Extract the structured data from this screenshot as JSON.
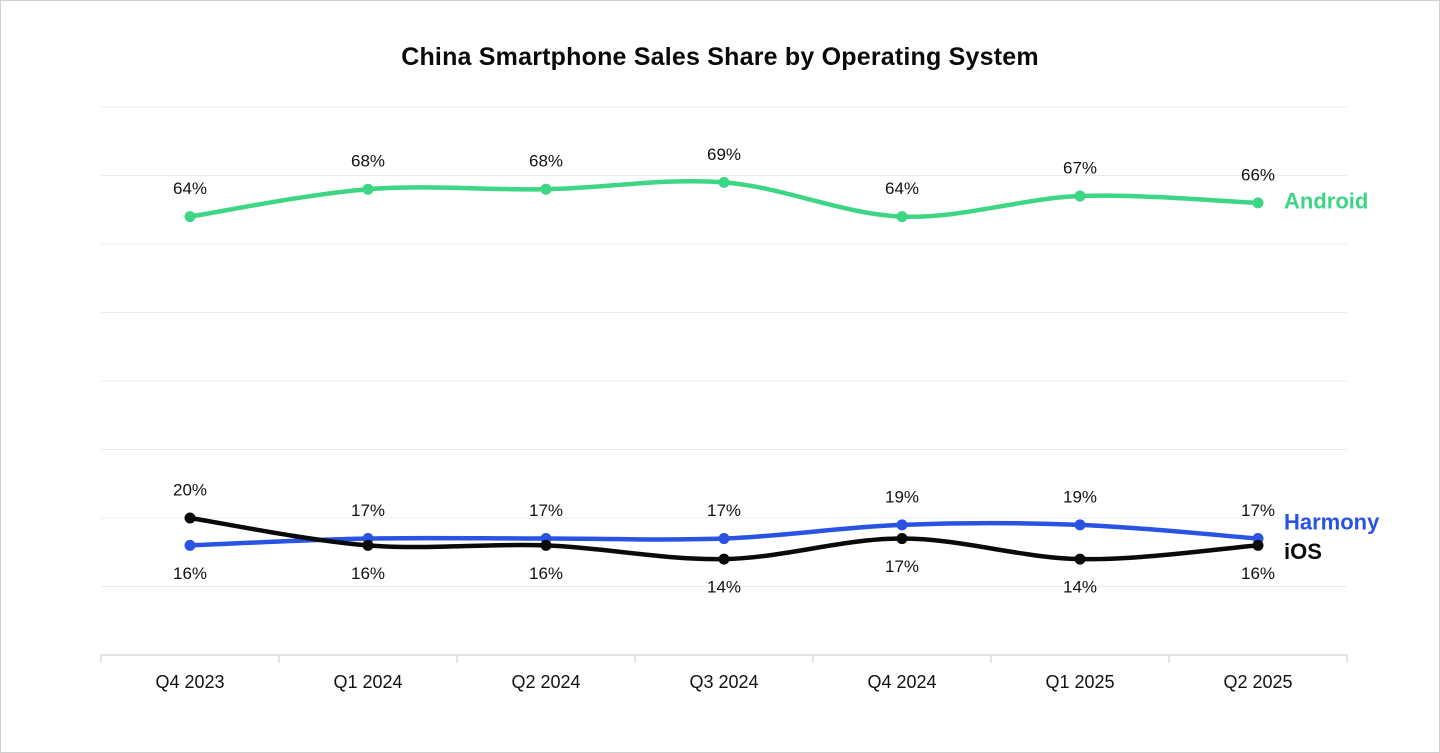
{
  "header": {
    "title": "China Smartphone Sales Share by Operating System"
  },
  "colors": {
    "android": "#3dd684",
    "harmony": "#2953e3",
    "ios": "#0a0a0a",
    "gridline": "#ececec",
    "axis": "#d9d9d9",
    "text": "#111111"
  },
  "chart_data": {
    "type": "line",
    "title": "China Smartphone Sales Share by Operating System",
    "categories": [
      "Q4 2023",
      "Q1 2024",
      "Q2 2024",
      "Q3 2024",
      "Q4 2024",
      "Q1 2025",
      "Q2 2025"
    ],
    "series": [
      {
        "name": "Android",
        "color": "#3dd684",
        "values": [
          64,
          68,
          68,
          69,
          64,
          67,
          66
        ],
        "labels": [
          "64%",
          "68%",
          "68%",
          "69%",
          "64%",
          "67%",
          "66%"
        ],
        "label_positions": [
          "above",
          "above",
          "above",
          "above",
          "above",
          "above",
          "above"
        ]
      },
      {
        "name": "Harmony",
        "color": "#2953e3",
        "values": [
          16,
          17,
          17,
          17,
          19,
          19,
          17
        ],
        "labels": [
          "16%",
          "17%",
          "17%",
          "17%",
          "19%",
          "19%",
          "17%"
        ],
        "label_positions": [
          "below",
          "above",
          "above",
          "above",
          "above",
          "above",
          "above"
        ]
      },
      {
        "name": "iOS",
        "color": "#0a0a0a",
        "values": [
          20,
          16,
          16,
          14,
          17,
          14,
          16
        ],
        "labels": [
          "20%",
          "16%",
          "16%",
          "14%",
          "17%",
          "14%",
          "16%"
        ],
        "label_positions": [
          "above",
          "below",
          "below",
          "below",
          "below",
          "below",
          "below"
        ]
      }
    ],
    "value_suffix": "%",
    "ylim": [
      0,
      80
    ],
    "grid": true,
    "grid_step": 10,
    "y_axis_labels_visible": false,
    "legend_position": "line-end"
  }
}
